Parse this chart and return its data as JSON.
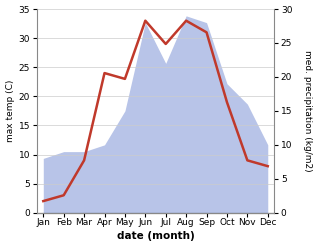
{
  "months": [
    "Jan",
    "Feb",
    "Mar",
    "Apr",
    "May",
    "Jun",
    "Jul",
    "Aug",
    "Sep",
    "Oct",
    "Nov",
    "Dec"
  ],
  "temp": [
    2,
    3,
    9,
    24,
    23,
    33,
    29,
    33,
    31,
    19,
    9,
    8
  ],
  "precip": [
    8,
    9,
    9,
    10,
    15,
    28,
    22,
    29,
    28,
    19,
    16,
    10
  ],
  "temp_color": "#c0392b",
  "precip_fill_color": "#b8c4e8",
  "temp_ylim": [
    0,
    35
  ],
  "precip_ylim": [
    0,
    30
  ],
  "temp_yticks": [
    0,
    5,
    10,
    15,
    20,
    25,
    30,
    35
  ],
  "precip_yticks": [
    0,
    5,
    10,
    15,
    20,
    25,
    30
  ],
  "xlabel": "date (month)",
  "ylabel_left": "max temp (C)",
  "ylabel_right": "med. precipitation (kg/m2)",
  "bg_color": "#ffffff",
  "line_width": 1.8,
  "grid_color": "#cccccc"
}
